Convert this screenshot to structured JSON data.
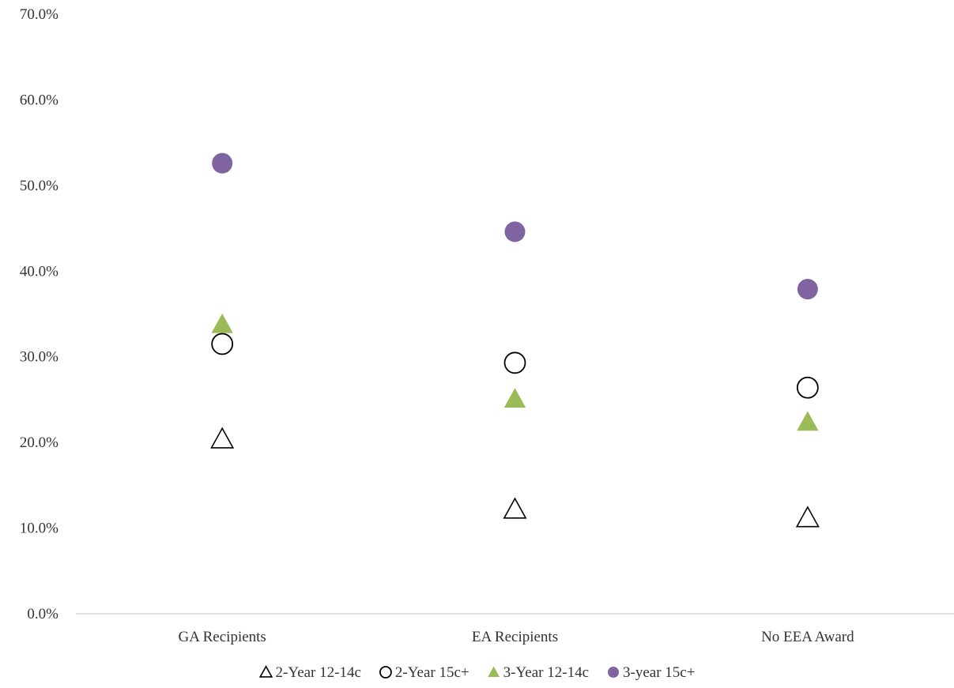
{
  "chart_data": {
    "type": "scatter",
    "title": "",
    "xlabel": "",
    "ylabel": "",
    "categories": [
      "GA Recipients",
      "EA Recipients",
      "No EEA Award"
    ],
    "ylim": [
      0,
      70
    ],
    "yticks": [
      0,
      10,
      20,
      30,
      40,
      50,
      60,
      70
    ],
    "ytick_labels": [
      "0.0%",
      "10.0%",
      "20.0%",
      "30.0%",
      "40.0%",
      "50.0%",
      "60.0%",
      "70.0%"
    ],
    "grid": false,
    "legend_position": "bottom",
    "series": [
      {
        "name": "2-Year 12-14c",
        "marker": "triangle-open",
        "color": "#000000",
        "values": [
          20.4,
          12.2,
          11.2
        ]
      },
      {
        "name": "2-Year 15c+",
        "marker": "circle-open",
        "color": "#000000",
        "values": [
          31.5,
          29.3,
          26.4
        ]
      },
      {
        "name": "3-Year 12-14c",
        "marker": "triangle-filled",
        "color": "#9BBB59",
        "values": [
          33.8,
          25.1,
          22.4
        ]
      },
      {
        "name": "3-year 15c+",
        "marker": "circle-filled",
        "color": "#8064A2",
        "values": [
          52.6,
          44.6,
          37.9
        ]
      }
    ]
  }
}
